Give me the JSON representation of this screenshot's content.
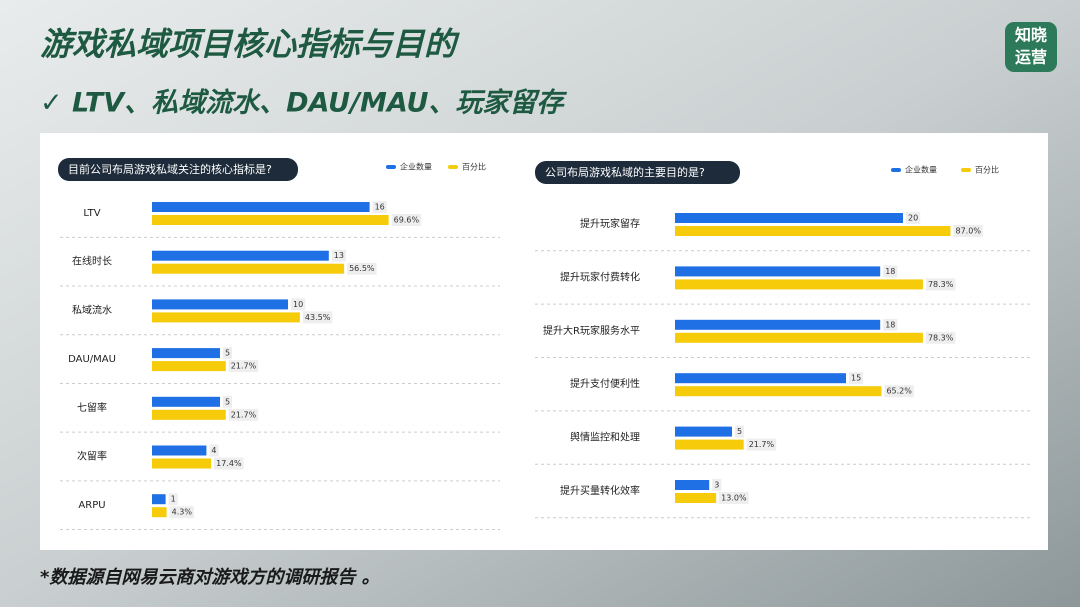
{
  "title": "游戏私域项目核心指标与目的",
  "subtitle": "✓ LTV、私域流水、DAU/MAU、玩家留存",
  "logo": [
    "知晓",
    "运营"
  ],
  "footnote": "*数据源自网易云商对游戏方的调研报告 。",
  "chart_data": [
    {
      "type": "bar",
      "orientation": "horizontal",
      "title": "目前公司布局游戏私域关注的核心指标是?",
      "categories": [
        "LTV",
        "在线时长",
        "私域流水",
        "DAU/MAU",
        "七留率",
        "次留率",
        "ARPU"
      ],
      "series": [
        {
          "name": "企业数量",
          "color": "#1f6fe5",
          "values": [
            16,
            13,
            10,
            5,
            5,
            4,
            1
          ]
        },
        {
          "name": "百分比",
          "color": "#f5cb0a",
          "axis": "x2",
          "values": [
            69.6,
            56.5,
            43.5,
            21.7,
            21.7,
            17.4,
            4.3
          ],
          "value_labels": [
            "69.6%",
            "56.5%",
            "43.5%",
            "21.7%",
            "21.7%",
            "17.4%",
            "4.3%"
          ]
        }
      ],
      "xlim": [
        0,
        20
      ],
      "x2lim": [
        0,
        80
      ]
    },
    {
      "type": "bar",
      "orientation": "horizontal",
      "title": "公司布局游戏私域的主要目的是?",
      "categories": [
        "提升玩家留存",
        "提升玩家付费转化",
        "提升大R玩家服务水平",
        "提升支付便利性",
        "舆情监控和处理",
        "提升买量转化效率"
      ],
      "series": [
        {
          "name": "企业数量",
          "color": "#1f6fe5",
          "values": [
            20,
            18,
            18,
            15,
            5,
            3
          ]
        },
        {
          "name": "百分比",
          "color": "#f5cb0a",
          "axis": "x2",
          "values": [
            87.0,
            78.3,
            78.3,
            65.2,
            21.7,
            13.0
          ],
          "value_labels": [
            "87.0%",
            "78.3%",
            "78.3%",
            "65.2%",
            "21.7%",
            "13.0%"
          ]
        }
      ],
      "xlim": [
        0,
        25
      ],
      "x2lim": [
        0,
        90
      ]
    }
  ]
}
